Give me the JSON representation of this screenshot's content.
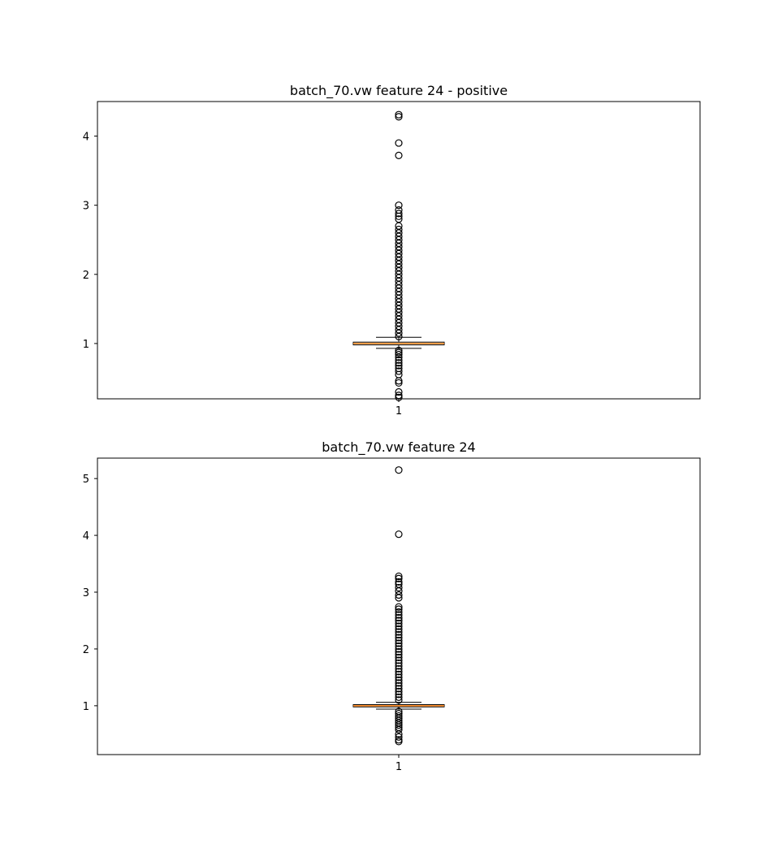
{
  "chart_data": [
    {
      "type": "box",
      "title": "batch_70.vw feature 24 - positive",
      "xlabel": "",
      "ylabel": "",
      "categories": [
        "1"
      ],
      "ylim": [
        0.2,
        4.5
      ],
      "yticks": [
        1,
        2,
        3,
        4
      ],
      "box": {
        "q1": 0.98,
        "median": 1.0,
        "q3": 1.02,
        "whisker_low": 0.93,
        "whisker_high": 1.09
      },
      "outliers": [
        4.31,
        4.28,
        3.9,
        3.72,
        3.0,
        2.93,
        2.88,
        2.84,
        2.8,
        2.7,
        2.65,
        2.6,
        2.55,
        2.5,
        2.45,
        2.4,
        2.35,
        2.3,
        2.25,
        2.2,
        2.15,
        2.1,
        2.05,
        2.0,
        1.95,
        1.9,
        1.85,
        1.8,
        1.75,
        1.7,
        1.65,
        1.6,
        1.55,
        1.5,
        1.45,
        1.4,
        1.35,
        1.3,
        1.25,
        1.2,
        1.15,
        1.1,
        0.9,
        0.87,
        0.84,
        0.8,
        0.76,
        0.72,
        0.68,
        0.64,
        0.6,
        0.55,
        0.46,
        0.43,
        0.3,
        0.25,
        0.22
      ],
      "grid": false
    },
    {
      "type": "box",
      "title": "batch_70.vw feature 24",
      "xlabel": "",
      "ylabel": "",
      "categories": [
        "1"
      ],
      "ylim": [
        0.14,
        5.36
      ],
      "yticks": [
        1,
        2,
        3,
        4,
        5
      ],
      "box": {
        "q1": 0.98,
        "median": 1.0,
        "q3": 1.02,
        "whisker_low": 0.94,
        "whisker_high": 1.06
      },
      "outliers": [
        5.15,
        4.02,
        3.28,
        3.24,
        3.18,
        3.14,
        3.08,
        3.02,
        2.95,
        2.9,
        2.74,
        2.7,
        2.65,
        2.6,
        2.55,
        2.5,
        2.45,
        2.4,
        2.35,
        2.3,
        2.25,
        2.2,
        2.15,
        2.1,
        2.05,
        2.0,
        1.95,
        1.9,
        1.85,
        1.8,
        1.75,
        1.7,
        1.65,
        1.6,
        1.55,
        1.5,
        1.45,
        1.4,
        1.35,
        1.3,
        1.25,
        1.2,
        1.15,
        1.1,
        0.9,
        0.86,
        0.82,
        0.78,
        0.74,
        0.7,
        0.66,
        0.62,
        0.58,
        0.5,
        0.45,
        0.4,
        0.37
      ],
      "grid": false
    }
  ]
}
